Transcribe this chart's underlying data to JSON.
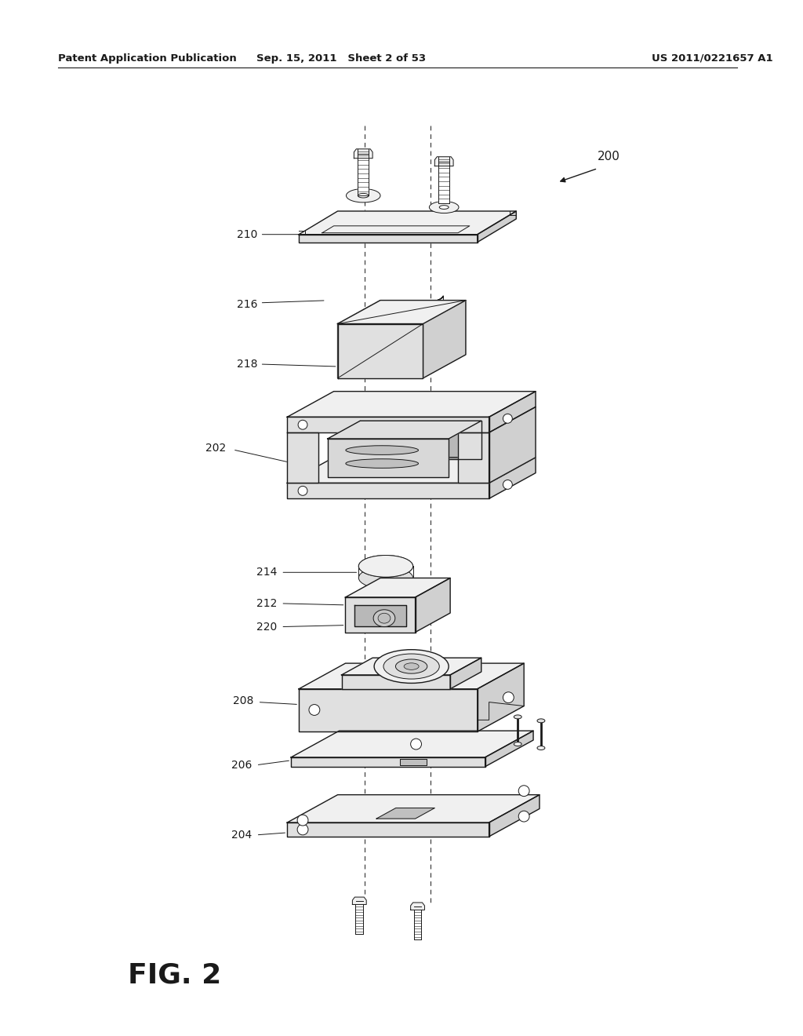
{
  "bg_color": "#ffffff",
  "line_color": "#1a1a1a",
  "header_left": "Patent Application Publication",
  "header_center": "Sep. 15, 2011   Sheet 2 of 53",
  "header_right": "US 2011/0221657 A1",
  "fig_label": "FIG. 2",
  "iso_sx": 0.5,
  "iso_sy": 0.28
}
